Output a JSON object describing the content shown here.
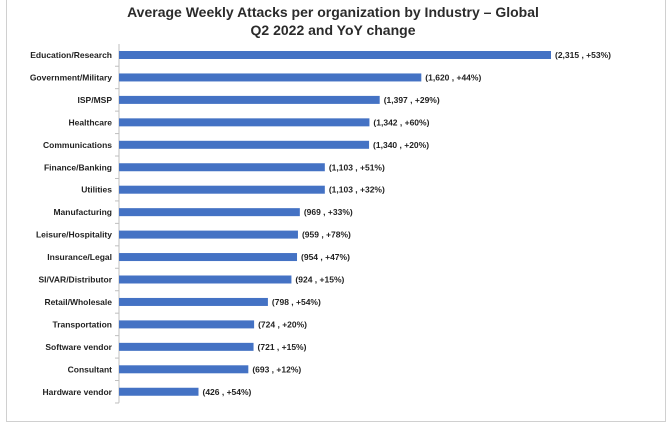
{
  "chart_data": {
    "type": "bar",
    "orientation": "horizontal",
    "title": "Average Weekly Attacks per organization by Industry – Global",
    "subtitle": "Q2 2022 and YoY change",
    "categories": [
      "Education/Research",
      "Government/Military",
      "ISP/MSP",
      "Healthcare",
      "Communications",
      "Finance/Banking",
      "Utilities",
      "Manufacturing",
      "Leisure/Hospitality",
      "Insurance/Legal",
      "SI/VAR/Distributor",
      "Retail/Wholesale",
      "Transportation",
      "Software vendor",
      "Consultant",
      "Hardware vendor"
    ],
    "values": [
      2315,
      1620,
      1397,
      1342,
      1340,
      1103,
      1103,
      969,
      959,
      954,
      924,
      798,
      724,
      721,
      693,
      426
    ],
    "data_labels": [
      "(2,315 , +53%)",
      "(1,620 , +44%)",
      "(1,397 , +29%)",
      "(1,342 , +60%)",
      "(1,340 , +20%)",
      "(1,103 , +51%)",
      "(1,103 , +32%)",
      "(969 , +33%)",
      "(959 , +78%)",
      "(954 , +47%)",
      "(924 , +15%)",
      "(798 , +54%)",
      "(724 , +20%)",
      "(721 , +15%)",
      "(693 , +12%)",
      "(426 , +54%)"
    ],
    "xlim": [
      0,
      2315
    ],
    "grid": false,
    "legend": "none",
    "bar_color": "#4472C4"
  }
}
